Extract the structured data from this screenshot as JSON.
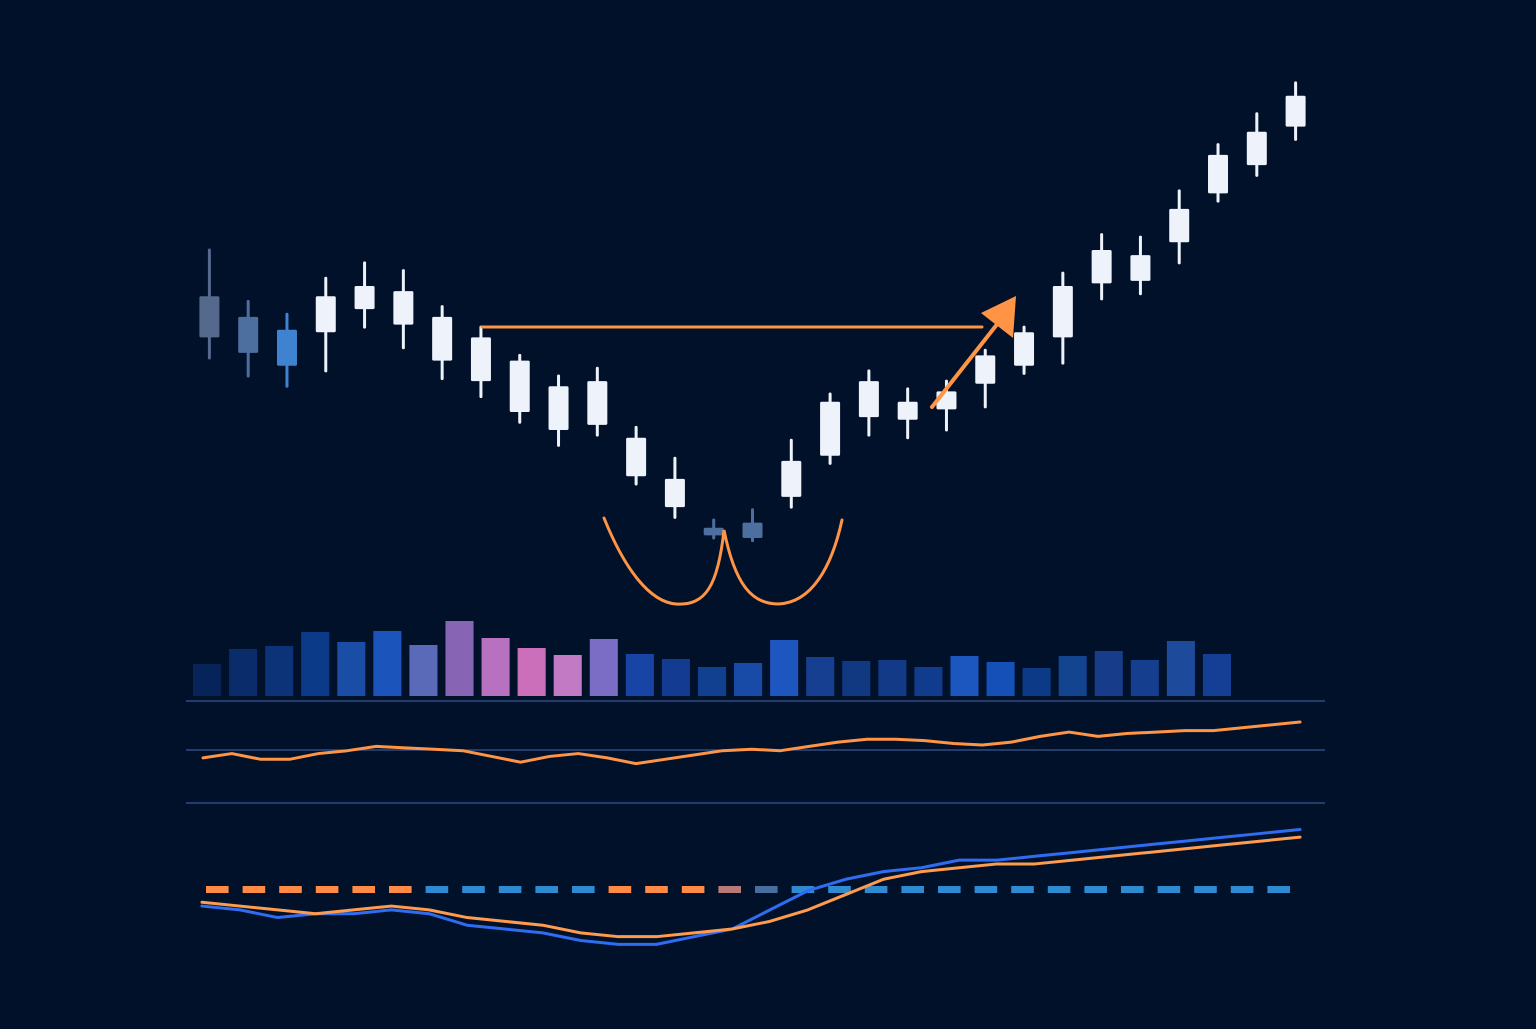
{
  "colors": {
    "background": "#01112a",
    "candle_bull": "#eef3fb",
    "candle_muted_1": "#55698d",
    "candle_muted_2": "#4d6f9f",
    "candle_muted_3": "#3f82cf",
    "pattern_orange": "#ff9445",
    "rsi_orange": "#ff9445",
    "macd_blue": "#2f6cf0",
    "signal_orange": "#ff9b4d",
    "grid": "#3d5a9a"
  },
  "chart_data": [
    {
      "type": "candlestick",
      "title": "",
      "xlabel": "",
      "ylabel": "",
      "grid": false,
      "legend": "none",
      "candles": [
        {
          "open": 122,
          "close": 106,
          "high": 140,
          "low": 98,
          "color": "candle_muted_1"
        },
        {
          "open": 114,
          "close": 100,
          "high": 120,
          "low": 91,
          "color": "candle_muted_2"
        },
        {
          "open": 109,
          "close": 95,
          "high": 115,
          "low": 87,
          "color": "candle_muted_3"
        },
        {
          "open": 108,
          "close": 122,
          "high": 129,
          "low": 93,
          "color": "candle_bull"
        },
        {
          "open": 117,
          "close": 126,
          "high": 135,
          "low": 110,
          "color": "candle_bull"
        },
        {
          "open": 124,
          "close": 111,
          "high": 132,
          "low": 102,
          "color": "candle_bull"
        },
        {
          "open": 114,
          "close": 97,
          "high": 118,
          "low": 90,
          "color": "candle_bull"
        },
        {
          "open": 106,
          "close": 89,
          "high": 110,
          "low": 83,
          "color": "candle_bull"
        },
        {
          "open": 97,
          "close": 77,
          "high": 99,
          "low": 73,
          "color": "candle_bull"
        },
        {
          "open": 87,
          "close": 70,
          "high": 91,
          "low": 64,
          "color": "candle_bull"
        },
        {
          "open": 89,
          "close": 72,
          "high": 94,
          "low": 68,
          "color": "candle_bull"
        },
        {
          "open": 67,
          "close": 52,
          "high": 71,
          "low": 49,
          "color": "candle_bull"
        },
        {
          "open": 51,
          "close": 40,
          "high": 59,
          "low": 36,
          "color": "candle_bull"
        },
        {
          "open": 32,
          "close": 29,
          "high": 35,
          "low": 28,
          "color": "candle_muted_2"
        },
        {
          "open": 28,
          "close": 34,
          "high": 39,
          "low": 27,
          "color": "candle_muted_2"
        },
        {
          "open": 44,
          "close": 58,
          "high": 66,
          "low": 40,
          "color": "candle_bull"
        },
        {
          "open": 60,
          "close": 81,
          "high": 84,
          "low": 57,
          "color": "candle_bull"
        },
        {
          "open": 75,
          "close": 89,
          "high": 93,
          "low": 68,
          "color": "candle_bull"
        },
        {
          "open": 74,
          "close": 81,
          "high": 86,
          "low": 67,
          "color": "candle_bull"
        },
        {
          "open": 78,
          "close": 85,
          "high": 89,
          "low": 70,
          "color": "candle_bull"
        },
        {
          "open": 88,
          "close": 99,
          "high": 101,
          "low": 79,
          "color": "candle_bull"
        },
        {
          "open": 95,
          "close": 108,
          "high": 110,
          "low": 92,
          "color": "candle_bull"
        },
        {
          "open": 106,
          "close": 126,
          "high": 131,
          "low": 96,
          "color": "candle_bull"
        },
        {
          "open": 127,
          "close": 140,
          "high": 146,
          "low": 121,
          "color": "candle_bull"
        },
        {
          "open": 128,
          "close": 138,
          "high": 145,
          "low": 123,
          "color": "candle_bull"
        },
        {
          "open": 143,
          "close": 156,
          "high": 163,
          "low": 135,
          "color": "candle_bull"
        },
        {
          "open": 162,
          "close": 177,
          "high": 181,
          "low": 159,
          "color": "candle_bull"
        },
        {
          "open": 173,
          "close": 186,
          "high": 193,
          "low": 169,
          "color": "candle_bull"
        },
        {
          "open": 188,
          "close": 200,
          "high": 205,
          "low": 183,
          "color": "candle_bull"
        }
      ],
      "ylim": [
        0,
        210
      ]
    },
    {
      "type": "bar",
      "title": "",
      "xlabel": "",
      "ylabel": "",
      "values": [
        32,
        47,
        50,
        64,
        54,
        65,
        51,
        75,
        58,
        48,
        41,
        57,
        42,
        37,
        29,
        33,
        56,
        39,
        35,
        36,
        29,
        40,
        34,
        28,
        40,
        45,
        36,
        55,
        42
      ],
      "bar_colors": [
        "#06245a",
        "#0a2c6b",
        "#0c3278",
        "#0b3a88",
        "#1a4ea6",
        "#1b55bb",
        "#5a69b8",
        "#8864b4",
        "#b870c0",
        "#cb6fbb",
        "#c27ac4",
        "#7b6dc5",
        "#1844a6",
        "#123b91",
        "#114090",
        "#174ba7",
        "#1d56bf",
        "#173f91",
        "#113982",
        "#123a86",
        "#113b8c",
        "#1c56bf",
        "#1450b8",
        "#0d3a86",
        "#13448f",
        "#163c8a",
        "#153e8f",
        "#1e4a9c",
        "#153f94"
      ],
      "ylim": [
        0,
        80
      ]
    },
    {
      "type": "line",
      "title": "",
      "xlabel": "",
      "ylabel": "",
      "series": [
        {
          "values": [
            28,
            31,
            27,
            27,
            31,
            33,
            36,
            35,
            34,
            33,
            29,
            25,
            29,
            31,
            28,
            24,
            27,
            30,
            33,
            34,
            33,
            36,
            39,
            41,
            41,
            40,
            38,
            37,
            39,
            43,
            46,
            43,
            45,
            46,
            47,
            47,
            49,
            51,
            53
          ]
        }
      ],
      "ylim": [
        0,
        60
      ]
    },
    {
      "type": "line",
      "title": "",
      "xlabel": "",
      "ylabel": "",
      "series": [
        {
          "values": [
            12,
            11,
            9,
            10,
            10,
            11,
            10,
            7,
            6,
            5,
            3,
            2,
            2,
            4,
            6,
            11,
            16,
            19,
            21,
            22,
            24,
            24,
            25,
            26,
            27,
            28,
            29,
            30,
            31,
            32
          ],
          "color": "macd_blue"
        },
        {
          "values": [
            13,
            12,
            11,
            10,
            11,
            12,
            11,
            9,
            8,
            7,
            5,
            4,
            4,
            5,
            6,
            8,
            11,
            15,
            19,
            21,
            22,
            23,
            23,
            24,
            25,
            26,
            27,
            28,
            29,
            30
          ],
          "color": "signal_orange"
        }
      ],
      "histogram": [
        {
          "value": 1,
          "color": "#ff8a45"
        },
        {
          "value": 1,
          "color": "#ff8a45"
        },
        {
          "value": 1,
          "color": "#ff8a45"
        },
        {
          "value": 1,
          "color": "#ff8a45"
        },
        {
          "value": 1,
          "color": "#ff8a45"
        },
        {
          "value": 1,
          "color": "#ff8a45"
        },
        {
          "value": 1,
          "color": "#2f8bd0"
        },
        {
          "value": 1,
          "color": "#2f8bd0"
        },
        {
          "value": 1,
          "color": "#2f8bd0"
        },
        {
          "value": 1,
          "color": "#2f8bd0"
        },
        {
          "value": 1,
          "color": "#2f8bd0"
        },
        {
          "value": 1,
          "color": "#ff8a45"
        },
        {
          "value": 1,
          "color": "#ff8a45"
        },
        {
          "value": 1,
          "color": "#ff8a45"
        },
        {
          "value": 1,
          "color": "#b77a79"
        },
        {
          "value": 1,
          "color": "#496d9f"
        },
        {
          "value": 1,
          "color": "#2f8bd0"
        },
        {
          "value": 1,
          "color": "#2f8bd0"
        },
        {
          "value": 1,
          "color": "#2f8bd0"
        },
        {
          "value": 1,
          "color": "#2f8bd0"
        },
        {
          "value": 1,
          "color": "#2f8bd0"
        },
        {
          "value": 1,
          "color": "#2f8bd0"
        },
        {
          "value": 1,
          "color": "#2f8bd0"
        },
        {
          "value": 1,
          "color": "#2f8bd0"
        },
        {
          "value": 1,
          "color": "#2f8bd0"
        },
        {
          "value": 1,
          "color": "#2f8bd0"
        },
        {
          "value": 1,
          "color": "#2f8bd0"
        },
        {
          "value": 1,
          "color": "#2f8bd0"
        },
        {
          "value": 1,
          "color": "#2f8bd0"
        },
        {
          "value": 1,
          "color": "#2f8bd0"
        }
      ],
      "ylim": [
        0,
        35
      ]
    }
  ]
}
